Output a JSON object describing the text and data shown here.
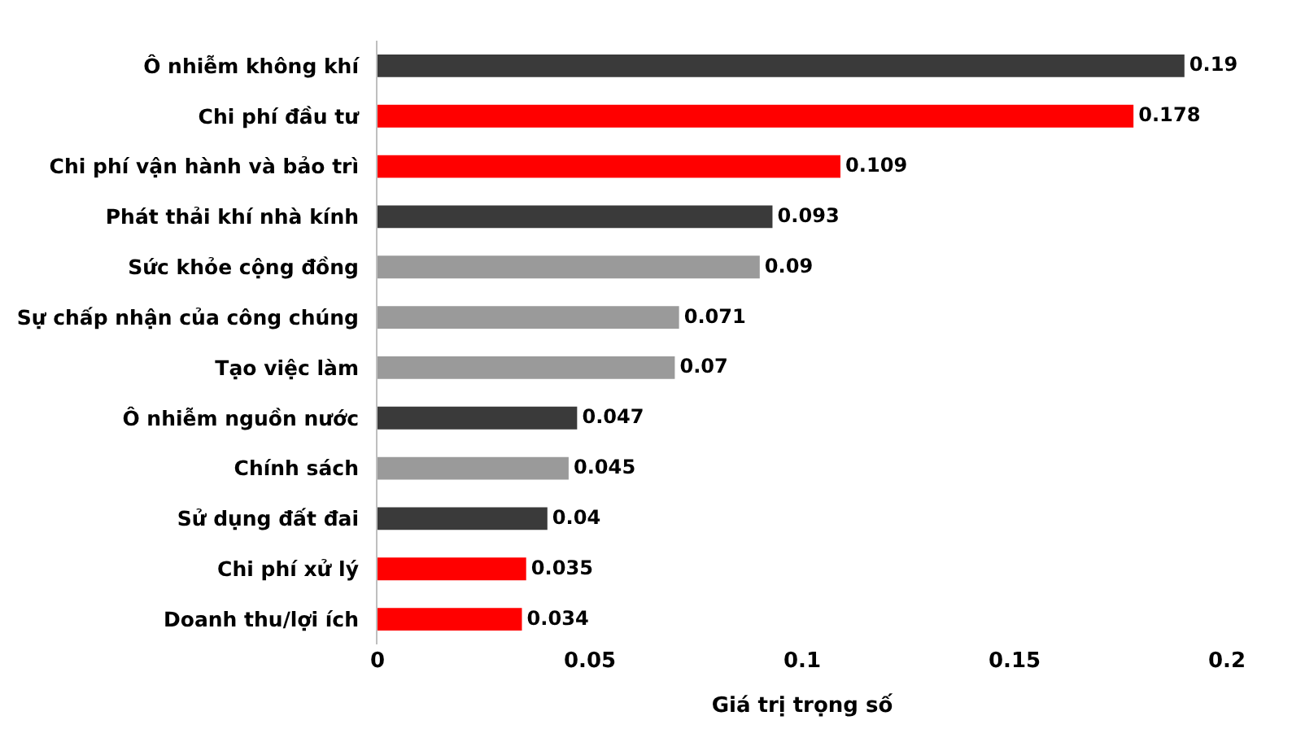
{
  "chart_data": {
    "type": "bar",
    "orientation": "horizontal",
    "xlabel": "Giá trị trọng số",
    "categories": [
      "Ô nhiễm không khí",
      "Chi phí đầu tư",
      "Chi phí vận hành và bảo trì",
      "Phát thải khí nhà kính",
      "Sức khỏe cộng đồng",
      "Sự chấp nhận của công chúng",
      "Tạo việc làm",
      "Ô nhiễm nguồn nước",
      "Chính sách",
      "Sử dụng đất đai",
      "Chi phí xử lý",
      "Doanh thu/lợi ích"
    ],
    "values": [
      0.19,
      0.178,
      0.109,
      0.093,
      0.09,
      0.071,
      0.07,
      0.047,
      0.045,
      0.04,
      0.035,
      0.034
    ],
    "colors": [
      "#3a3a3a",
      "#ff0000",
      "#ff0000",
      "#3a3a3a",
      "#9a9a9a",
      "#9a9a9a",
      "#9a9a9a",
      "#3a3a3a",
      "#9a9a9a",
      "#3a3a3a",
      "#ff0000",
      "#ff0000"
    ],
    "xlim": [
      0,
      0.2
    ],
    "xticks": [
      0,
      0.05,
      0.1,
      0.15,
      0.2
    ],
    "data_labels": true
  }
}
